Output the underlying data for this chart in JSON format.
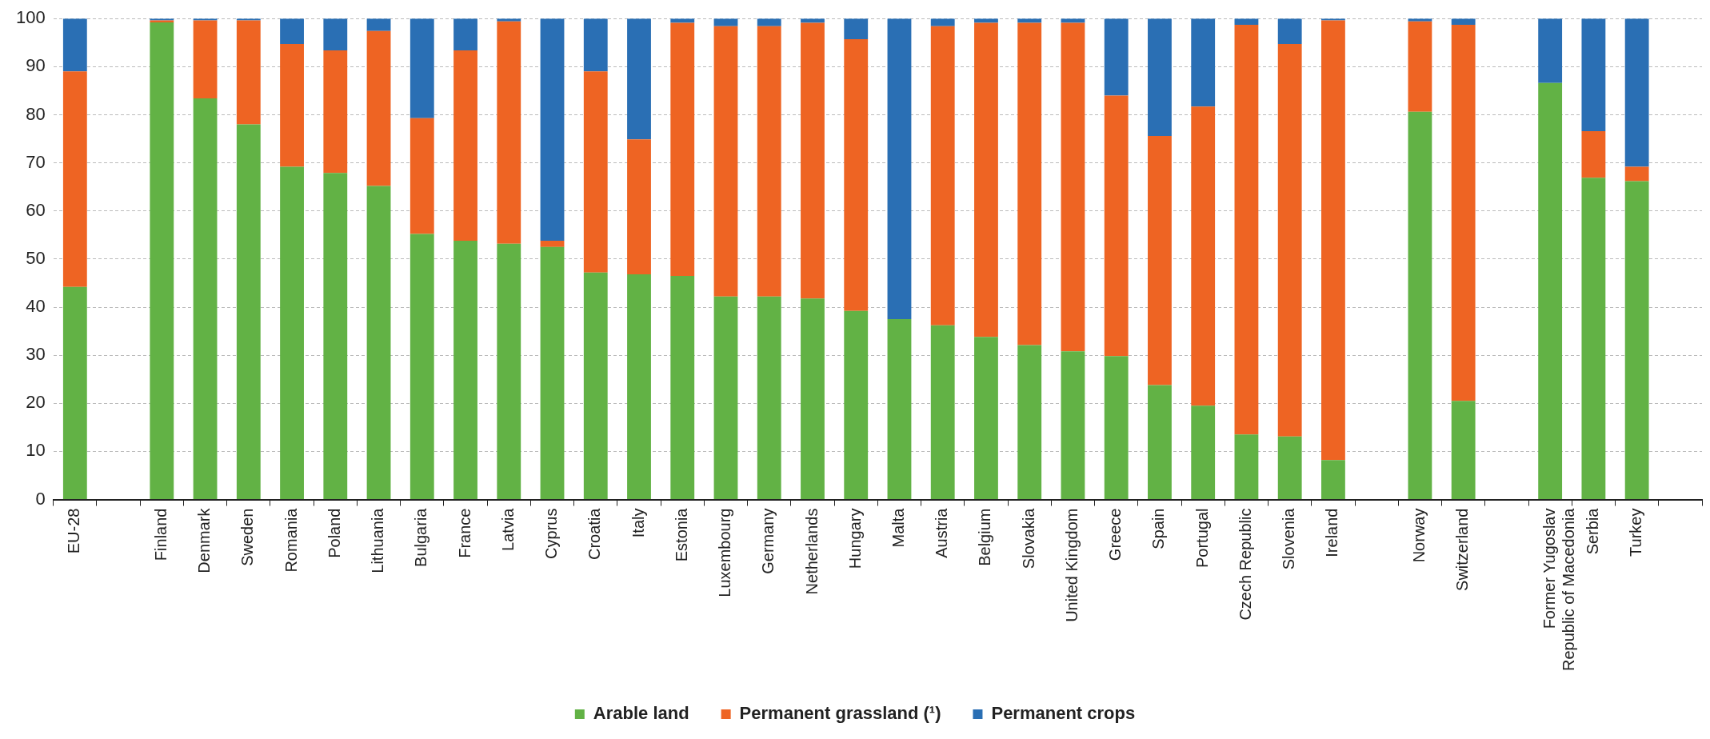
{
  "chart_data": {
    "type": "bar",
    "stacked": true,
    "categories": [
      "EU-28",
      null,
      "Finland",
      "Denmark",
      "Sweden",
      "Romania",
      "Poland",
      "Lithuania",
      "Bulgaria",
      "France",
      "Latvia",
      "Cyprus",
      "Croatia",
      "Italy",
      "Estonia",
      "Luxembourg",
      "Germany",
      "Netherlands",
      "Hungary",
      "Malta",
      "Austria",
      "Belgium",
      "Slovakia",
      "United Kingdom",
      "Greece",
      "Spain",
      "Portugal",
      "Czech Republic",
      "Slovenia",
      "Ireland",
      null,
      "Norway",
      "Switzerland",
      null,
      "Former Yugoslav Republic of Macedonia",
      "Serbia",
      "Turkey",
      null
    ],
    "series": [
      {
        "name": "Arable land",
        "color": "#62b245",
        "values": [
          44.2,
          null,
          99.2,
          83.4,
          78.0,
          69.2,
          67.9,
          65.2,
          55.2,
          53.8,
          53.2,
          52.5,
          47.2,
          46.8,
          46.5,
          42.2,
          42.2,
          41.8,
          39.2,
          37.5,
          36.2,
          33.8,
          32.1,
          30.8,
          29.8,
          23.8,
          19.5,
          13.5,
          13.1,
          8.2,
          null,
          80.6,
          20.5,
          null,
          86.6,
          66.9,
          66.2,
          null
        ]
      },
      {
        "name": "Permanent grassland (¹)",
        "color": "#ee6423",
        "values": [
          44.8,
          null,
          0.4,
          16.2,
          21.6,
          25.5,
          25.5,
          32.2,
          24.1,
          39.6,
          46.2,
          1.3,
          41.8,
          28.1,
          52.6,
          56.2,
          56.2,
          57.3,
          56.5,
          0,
          62.2,
          65.3,
          67.0,
          68.3,
          54.2,
          51.8,
          62.2,
          85.2,
          81.6,
          91.4,
          null,
          18.8,
          78.2,
          null,
          0,
          9.7,
          3.0,
          null
        ]
      },
      {
        "name": "Permanent crops",
        "color": "#2a6fb4",
        "values": [
          11.0,
          null,
          0.4,
          0.4,
          0.4,
          5.3,
          6.6,
          2.6,
          20.7,
          6.6,
          0.6,
          46.2,
          11.0,
          25.1,
          0.9,
          1.6,
          1.6,
          0.9,
          4.3,
          62.5,
          1.6,
          0.9,
          0.9,
          0.9,
          16.0,
          24.4,
          18.3,
          1.3,
          5.3,
          0.4,
          null,
          0.6,
          1.3,
          null,
          13.4,
          23.4,
          30.8,
          null
        ]
      }
    ],
    "ylim": [
      0,
      100
    ],
    "yticks": [
      0,
      10,
      20,
      30,
      40,
      50,
      60,
      70,
      80,
      90,
      100
    ],
    "grid": "y",
    "legend": "bottom"
  }
}
